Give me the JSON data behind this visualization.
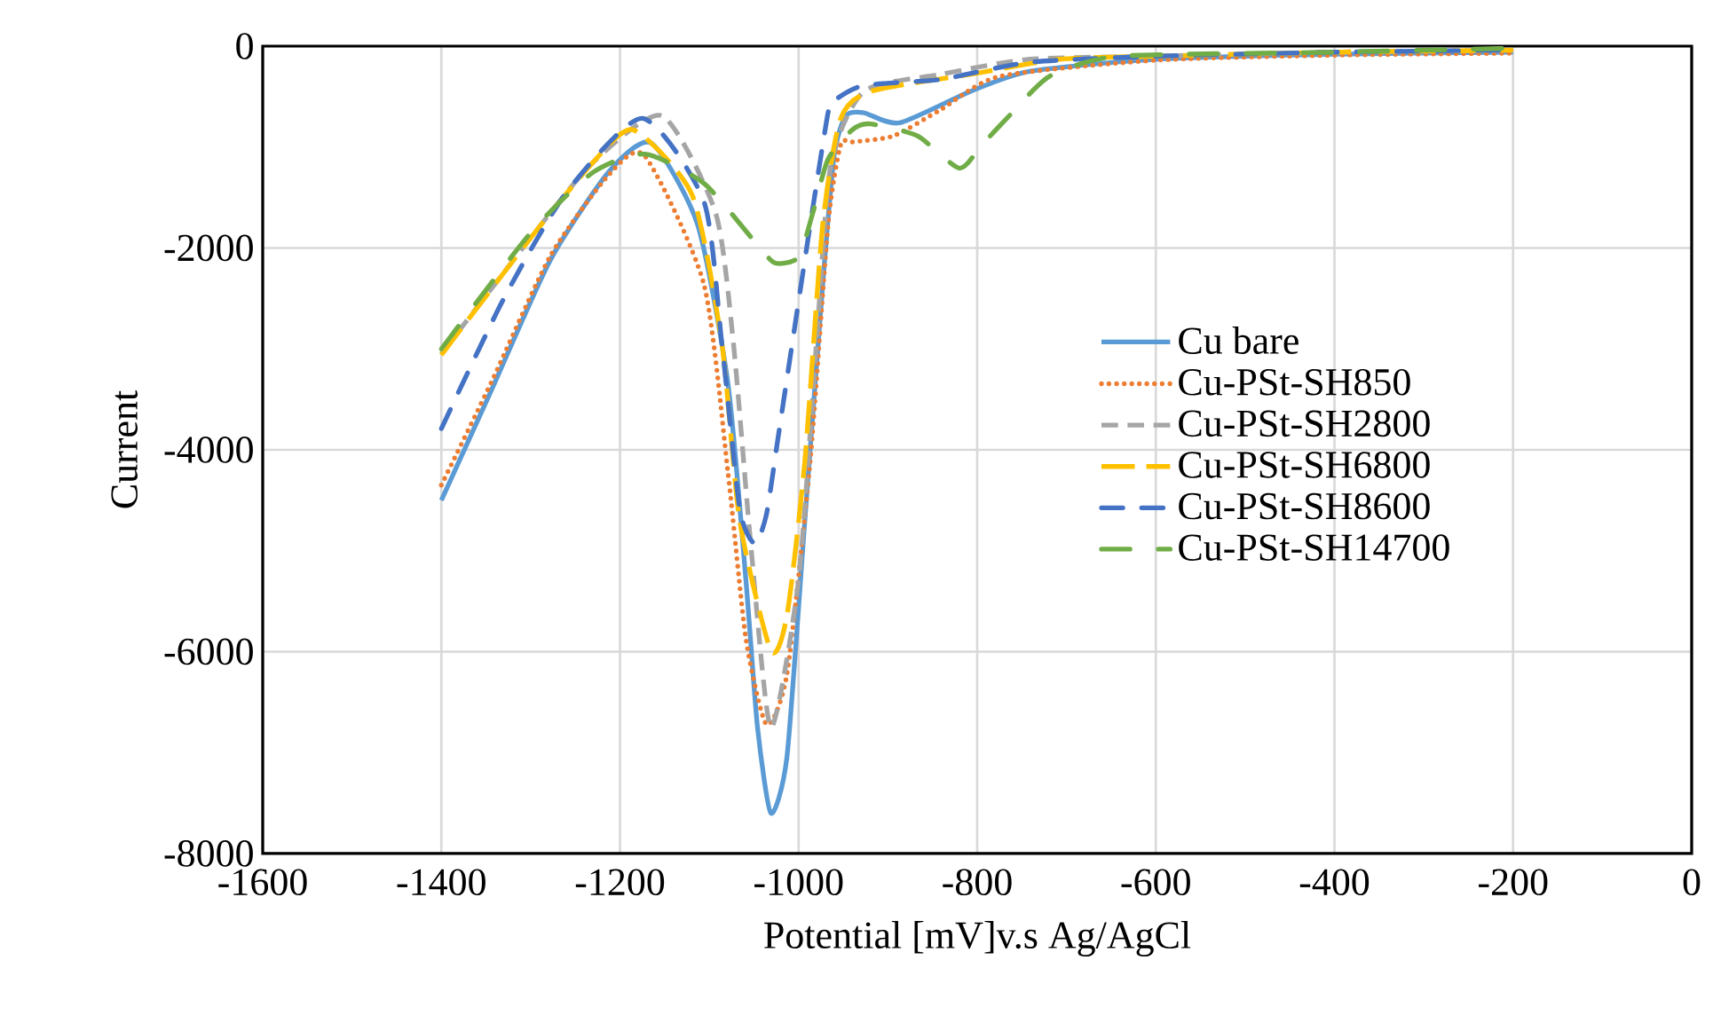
{
  "chart_data": {
    "type": "line",
    "xlabel": "Potential [mV]v.s Ag/AgCl",
    "ylabel": "Current",
    "xlim": [
      -1600,
      0
    ],
    "xticks": [
      -1600,
      -1400,
      -1200,
      -1000,
      -800,
      -600,
      -400,
      -200,
      0
    ],
    "ylim": [
      -8000,
      0
    ],
    "yticks": [
      -8000,
      -6000,
      -4000,
      -2000,
      0
    ],
    "grid": true,
    "legend": "right",
    "series": [
      {
        "name": "Cu bare",
        "color": "#5b9bd5",
        "line_style": "solid",
        "x": [
          -1400,
          -1344,
          -1278,
          -1212,
          -1165,
          -1113,
          -1079,
          -1059,
          -1046,
          -1031,
          -1013,
          -993,
          -973,
          -960,
          -947,
          -927,
          -887,
          -808,
          -741,
          -600,
          -400,
          -200
        ],
        "values": [
          -4500,
          -3410,
          -2120,
          -1240,
          -960,
          -1770,
          -3350,
          -5290,
          -6750,
          -7600,
          -7040,
          -4700,
          -2360,
          -1070,
          -690,
          -660,
          -760,
          -450,
          -250,
          -130,
          -80,
          -60
        ]
      },
      {
        "name": "Cu-PSt-SH850",
        "color": "#ed7d31",
        "line_style": "dotted",
        "x": [
          -1400,
          -1344,
          -1278,
          -1212,
          -1172,
          -1106,
          -1079,
          -1059,
          -1036,
          -1013,
          -987,
          -967,
          -953,
          -940,
          -894,
          -841,
          -775,
          -600,
          -400,
          -200
        ],
        "values": [
          -4350,
          -3330,
          -2080,
          -1270,
          -1090,
          -2360,
          -4230,
          -5870,
          -6720,
          -6220,
          -4110,
          -1770,
          -980,
          -950,
          -890,
          -630,
          -300,
          -140,
          -90,
          -70
        ]
      },
      {
        "name": "Cu-PSt-SH2800",
        "color": "#a5a5a5",
        "line_style": "dashed",
        "x": [
          -1400,
          -1300,
          -1230,
          -1153,
          -1093,
          -1073,
          -1053,
          -1031,
          -1000,
          -980,
          -964,
          -927,
          -841,
          -741,
          -600,
          -400,
          -200
        ],
        "values": [
          -3050,
          -1900,
          -1150,
          -690,
          -1650,
          -2940,
          -4990,
          -6750,
          -5290,
          -2940,
          -1180,
          -450,
          -280,
          -130,
          -100,
          -60,
          -40
        ]
      },
      {
        "name": "Cu-PSt-SH6800",
        "color": "#ffc000",
        "line_style": "longdashed",
        "x": [
          -1400,
          -1300,
          -1230,
          -1185,
          -1119,
          -1086,
          -1066,
          -1031,
          -1013,
          -993,
          -973,
          -953,
          -920,
          -808,
          -708,
          -600,
          -400,
          -200
        ],
        "values": [
          -3060,
          -1900,
          -1150,
          -830,
          -1480,
          -2940,
          -4700,
          -5990,
          -5640,
          -4110,
          -1770,
          -720,
          -450,
          -280,
          -130,
          -100,
          -60,
          -40
        ]
      },
      {
        "name": "Cu-PSt-SH8600",
        "color": "#4472c4",
        "line_style": "dashdot",
        "x": [
          -1400,
          -1330,
          -1260,
          -1175,
          -1106,
          -1086,
          -1066,
          -1049,
          -1036,
          -1023,
          -1007,
          -987,
          -967,
          -960,
          -927,
          -841,
          -741,
          -600,
          -400,
          -200
        ],
        "values": [
          -3790,
          -2500,
          -1450,
          -715,
          -1540,
          -2940,
          -4580,
          -4930,
          -4640,
          -3880,
          -2940,
          -1770,
          -660,
          -540,
          -390,
          -330,
          -160,
          -100,
          -60,
          -40
        ]
      },
      {
        "name": "Cu-PSt-SH14700",
        "color": "#70ad47",
        "line_style": "dashdotdot",
        "x": [
          -1400,
          -1300,
          -1230,
          -1172,
          -1106,
          -1046,
          -1026,
          -1000,
          -984,
          -967,
          -940,
          -920,
          -867,
          -820,
          -795,
          -761,
          -741,
          -715,
          -642,
          -400,
          -200
        ],
        "values": [
          -3000,
          -1850,
          -1250,
          -1070,
          -1360,
          -1970,
          -2150,
          -2090,
          -1650,
          -1120,
          -830,
          -770,
          -890,
          -1210,
          -980,
          -660,
          -470,
          -280,
          -100,
          -60,
          -20
        ]
      }
    ]
  }
}
